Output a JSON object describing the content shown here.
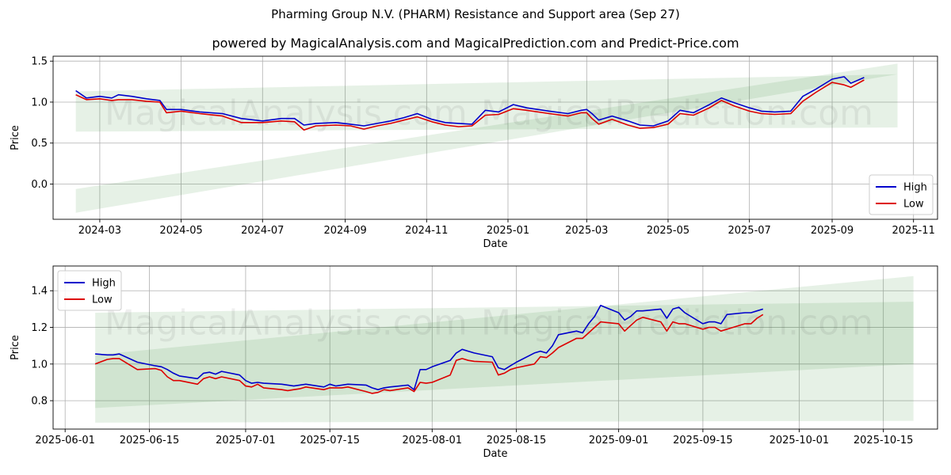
{
  "title": "Pharming Group N.V. (PHARM) Resistance and Support area (Sep 27)",
  "subtitle": "powered by MagicalAnalysis.com and MagicalPrediction.com and Predict-Price.com",
  "watermark": [
    "MagicalAnalysis.com",
    "MagicalPrediction.com"
  ],
  "colors": {
    "high": "#0000cc",
    "low": "#dd0000",
    "band": "#2e8b2e",
    "grid": "#b0b0b0"
  },
  "chart_data": [
    {
      "type": "line",
      "xlabel": "Date",
      "ylabel": "Price",
      "x_ticks": [
        "2024-03",
        "2024-05",
        "2024-07",
        "2024-09",
        "2024-11",
        "2025-01",
        "2025-03",
        "2025-05",
        "2025-07",
        "2025-09",
        "2025-11"
      ],
      "y_ticks": [
        "0.0",
        "0.5",
        "1.0",
        "1.5"
      ],
      "xlim": [
        "2024-01-26",
        "2025-11-19"
      ],
      "ylim": [
        -0.43,
        1.56
      ],
      "legend": {
        "position": "bottom-right",
        "entries": [
          "High",
          "Low"
        ]
      },
      "bands": [
        {
          "x": [
            "2024-02-12",
            "2025-10-20"
          ],
          "lower": [
            -0.35,
            1.34
          ],
          "upper": [
            -0.06,
            1.47
          ],
          "alpha": 0.12
        },
        {
          "x": [
            "2024-02-12",
            "2025-10-20"
          ],
          "lower": [
            0.64,
            0.69
          ],
          "upper": [
            1.13,
            1.34
          ],
          "alpha": 0.12
        }
      ],
      "series": [
        {
          "name": "High",
          "x": [
            "2024-02-12",
            "2024-02-20",
            "2024-03-01",
            "2024-03-10",
            "2024-03-15",
            "2024-03-25",
            "2024-04-05",
            "2024-04-15",
            "2024-04-20",
            "2024-05-01",
            "2024-05-15",
            "2024-06-01",
            "2024-06-15",
            "2024-07-01",
            "2024-07-15",
            "2024-07-25",
            "2024-08-01",
            "2024-08-10",
            "2024-08-25",
            "2024-09-05",
            "2024-09-15",
            "2024-09-25",
            "2024-10-05",
            "2024-10-15",
            "2024-10-25",
            "2024-11-05",
            "2024-11-15",
            "2024-11-25",
            "2024-12-05",
            "2024-12-15",
            "2024-12-25",
            "2025-01-05",
            "2025-01-15",
            "2025-02-01",
            "2025-02-15",
            "2025-02-25",
            "2025-03-01",
            "2025-03-05",
            "2025-03-10",
            "2025-03-20",
            "2025-04-01",
            "2025-04-10",
            "2025-04-20",
            "2025-05-01",
            "2025-05-10",
            "2025-05-20",
            "2025-06-01",
            "2025-06-10",
            "2025-06-20",
            "2025-07-01",
            "2025-07-10",
            "2025-07-20",
            "2025-08-01",
            "2025-08-10",
            "2025-08-20",
            "2025-09-01",
            "2025-09-10",
            "2025-09-15",
            "2025-09-25"
          ],
          "values": [
            1.14,
            1.05,
            1.07,
            1.05,
            1.09,
            1.07,
            1.04,
            1.02,
            0.91,
            0.91,
            0.88,
            0.86,
            0.8,
            0.77,
            0.8,
            0.8,
            0.72,
            0.74,
            0.75,
            0.73,
            0.71,
            0.74,
            0.77,
            0.81,
            0.86,
            0.79,
            0.75,
            0.74,
            0.73,
            0.9,
            0.88,
            0.97,
            0.93,
            0.89,
            0.86,
            0.9,
            0.91,
            0.86,
            0.78,
            0.83,
            0.77,
            0.72,
            0.71,
            0.77,
            0.9,
            0.87,
            0.97,
            1.05,
            0.99,
            0.93,
            0.89,
            0.88,
            0.89,
            1.07,
            1.16,
            1.28,
            1.31,
            1.23,
            1.3
          ]
        },
        {
          "name": "Low",
          "x": [
            "2024-02-12",
            "2024-02-20",
            "2024-03-01",
            "2024-03-10",
            "2024-03-15",
            "2024-03-25",
            "2024-04-05",
            "2024-04-15",
            "2024-04-20",
            "2024-05-01",
            "2024-05-15",
            "2024-06-01",
            "2024-06-15",
            "2024-07-01",
            "2024-07-15",
            "2024-07-25",
            "2024-08-01",
            "2024-08-10",
            "2024-08-25",
            "2024-09-05",
            "2024-09-15",
            "2024-09-25",
            "2024-10-05",
            "2024-10-15",
            "2024-10-25",
            "2024-11-05",
            "2024-11-15",
            "2024-11-25",
            "2024-12-05",
            "2024-12-15",
            "2024-12-25",
            "2025-01-05",
            "2025-01-15",
            "2025-02-01",
            "2025-02-15",
            "2025-02-25",
            "2025-03-01",
            "2025-03-05",
            "2025-03-10",
            "2025-03-20",
            "2025-04-01",
            "2025-04-10",
            "2025-04-20",
            "2025-05-01",
            "2025-05-10",
            "2025-05-20",
            "2025-06-01",
            "2025-06-10",
            "2025-06-20",
            "2025-07-01",
            "2025-07-10",
            "2025-07-20",
            "2025-08-01",
            "2025-08-10",
            "2025-08-20",
            "2025-09-01",
            "2025-09-10",
            "2025-09-15",
            "2025-09-25"
          ],
          "values": [
            1.09,
            1.03,
            1.04,
            1.02,
            1.03,
            1.03,
            1.01,
            1.0,
            0.87,
            0.89,
            0.86,
            0.83,
            0.75,
            0.75,
            0.77,
            0.76,
            0.66,
            0.71,
            0.72,
            0.71,
            0.67,
            0.71,
            0.74,
            0.78,
            0.82,
            0.76,
            0.72,
            0.7,
            0.71,
            0.84,
            0.85,
            0.92,
            0.9,
            0.86,
            0.83,
            0.87,
            0.87,
            0.8,
            0.73,
            0.79,
            0.72,
            0.68,
            0.69,
            0.73,
            0.86,
            0.84,
            0.93,
            1.02,
            0.95,
            0.89,
            0.86,
            0.85,
            0.86,
            1.01,
            1.12,
            1.24,
            1.21,
            1.18,
            1.27
          ]
        }
      ]
    },
    {
      "type": "line",
      "xlabel": "Date",
      "ylabel": "Price",
      "x_ticks": [
        "2025-06-01",
        "2025-06-15",
        "2025-07-01",
        "2025-07-15",
        "2025-08-01",
        "2025-08-15",
        "2025-09-01",
        "2025-09-15",
        "2025-10-01",
        "2025-10-15"
      ],
      "y_ticks": [
        "0.8",
        "1.0",
        "1.2",
        "1.4"
      ],
      "xlim": [
        "2025-05-30",
        "2025-10-24"
      ],
      "ylim": [
        0.645,
        1.535
      ],
      "legend": {
        "position": "top-left",
        "entries": [
          "High",
          "Low"
        ]
      },
      "bands": [
        {
          "x": [
            "2025-06-06",
            "2025-10-20"
          ],
          "lower": [
            0.76,
            1.0
          ],
          "upper": [
            1.05,
            1.48
          ],
          "alpha": 0.12
        },
        {
          "x": [
            "2025-06-06",
            "2025-10-20"
          ],
          "lower": [
            0.68,
            0.69
          ],
          "upper": [
            1.28,
            1.34
          ],
          "alpha": 0.12
        }
      ],
      "series": [
        {
          "name": "High",
          "x": [
            "2025-06-06",
            "2025-06-08",
            "2025-06-09",
            "2025-06-10",
            "2025-06-13",
            "2025-06-16",
            "2025-06-17",
            "2025-06-18",
            "2025-06-19",
            "2025-06-20",
            "2025-06-23",
            "2025-06-24",
            "2025-06-25",
            "2025-06-26",
            "2025-06-27",
            "2025-06-30",
            "2025-07-01",
            "2025-07-02",
            "2025-07-03",
            "2025-07-04",
            "2025-07-07",
            "2025-07-08",
            "2025-07-09",
            "2025-07-10",
            "2025-07-11",
            "2025-07-14",
            "2025-07-15",
            "2025-07-16",
            "2025-07-17",
            "2025-07-18",
            "2025-07-21",
            "2025-07-22",
            "2025-07-23",
            "2025-07-24",
            "2025-07-25",
            "2025-07-28",
            "2025-07-29",
            "2025-07-30",
            "2025-07-31",
            "2025-08-01",
            "2025-08-04",
            "2025-08-05",
            "2025-08-06",
            "2025-08-07",
            "2025-08-08",
            "2025-08-11",
            "2025-08-12",
            "2025-08-13",
            "2025-08-14",
            "2025-08-15",
            "2025-08-18",
            "2025-08-19",
            "2025-08-20",
            "2025-08-21",
            "2025-08-22",
            "2025-08-25",
            "2025-08-26",
            "2025-08-27",
            "2025-08-28",
            "2025-08-29",
            "2025-09-01",
            "2025-09-02",
            "2025-09-03",
            "2025-09-04",
            "2025-09-05",
            "2025-09-08",
            "2025-09-09",
            "2025-09-10",
            "2025-09-11",
            "2025-09-12",
            "2025-09-15",
            "2025-09-16",
            "2025-09-17",
            "2025-09-18",
            "2025-09-19",
            "2025-09-22",
            "2025-09-23",
            "2025-09-24",
            "2025-09-25"
          ],
          "values": [
            1.055,
            1.05,
            1.05,
            1.055,
            1.01,
            0.99,
            0.985,
            0.97,
            0.95,
            0.935,
            0.92,
            0.95,
            0.955,
            0.945,
            0.96,
            0.94,
            0.91,
            0.895,
            0.9,
            0.895,
            0.89,
            0.885,
            0.88,
            0.885,
            0.89,
            0.875,
            0.89,
            0.88,
            0.885,
            0.89,
            0.885,
            0.87,
            0.86,
            0.87,
            0.875,
            0.885,
            0.86,
            0.97,
            0.97,
            0.985,
            1.02,
            1.06,
            1.08,
            1.07,
            1.06,
            1.04,
            0.98,
            0.97,
            0.99,
            1.01,
            1.06,
            1.07,
            1.06,
            1.1,
            1.16,
            1.18,
            1.17,
            1.22,
            1.26,
            1.32,
            1.28,
            1.24,
            1.26,
            1.29,
            1.29,
            1.3,
            1.25,
            1.3,
            1.31,
            1.28,
            1.22,
            1.23,
            1.23,
            1.22,
            1.27,
            1.28,
            1.28,
            1.29,
            1.3
          ]
        },
        {
          "name": "Low",
          "x": [
            "2025-06-06",
            "2025-06-08",
            "2025-06-09",
            "2025-06-10",
            "2025-06-13",
            "2025-06-16",
            "2025-06-17",
            "2025-06-18",
            "2025-06-19",
            "2025-06-20",
            "2025-06-23",
            "2025-06-24",
            "2025-06-25",
            "2025-06-26",
            "2025-06-27",
            "2025-06-30",
            "2025-07-01",
            "2025-07-02",
            "2025-07-03",
            "2025-07-04",
            "2025-07-07",
            "2025-07-08",
            "2025-07-09",
            "2025-07-10",
            "2025-07-11",
            "2025-07-14",
            "2025-07-15",
            "2025-07-16",
            "2025-07-17",
            "2025-07-18",
            "2025-07-21",
            "2025-07-22",
            "2025-07-23",
            "2025-07-24",
            "2025-07-25",
            "2025-07-28",
            "2025-07-29",
            "2025-07-30",
            "2025-07-31",
            "2025-08-01",
            "2025-08-04",
            "2025-08-05",
            "2025-08-06",
            "2025-08-07",
            "2025-08-08",
            "2025-08-11",
            "2025-08-12",
            "2025-08-13",
            "2025-08-14",
            "2025-08-15",
            "2025-08-18",
            "2025-08-19",
            "2025-08-20",
            "2025-08-21",
            "2025-08-22",
            "2025-08-25",
            "2025-08-26",
            "2025-08-27",
            "2025-08-28",
            "2025-08-29",
            "2025-09-01",
            "2025-09-02",
            "2025-09-03",
            "2025-09-04",
            "2025-09-05",
            "2025-09-08",
            "2025-09-09",
            "2025-09-10",
            "2025-09-11",
            "2025-09-12",
            "2025-09-15",
            "2025-09-16",
            "2025-09-17",
            "2025-09-18",
            "2025-09-19",
            "2025-09-22",
            "2025-09-23",
            "2025-09-24",
            "2025-09-25"
          ],
          "values": [
            1.0,
            1.025,
            1.03,
            1.03,
            0.97,
            0.975,
            0.965,
            0.93,
            0.91,
            0.91,
            0.89,
            0.92,
            0.93,
            0.92,
            0.93,
            0.91,
            0.88,
            0.875,
            0.89,
            0.87,
            0.86,
            0.855,
            0.86,
            0.865,
            0.875,
            0.86,
            0.87,
            0.87,
            0.87,
            0.875,
            0.85,
            0.84,
            0.845,
            0.86,
            0.855,
            0.87,
            0.85,
            0.9,
            0.895,
            0.9,
            0.94,
            1.02,
            1.03,
            1.02,
            1.015,
            1.01,
            0.94,
            0.95,
            0.97,
            0.98,
            1.0,
            1.04,
            1.035,
            1.06,
            1.09,
            1.14,
            1.14,
            1.17,
            1.2,
            1.23,
            1.22,
            1.18,
            1.21,
            1.24,
            1.255,
            1.23,
            1.18,
            1.23,
            1.22,
            1.22,
            1.19,
            1.2,
            1.2,
            1.18,
            1.19,
            1.22,
            1.22,
            1.25,
            1.27
          ]
        }
      ]
    }
  ]
}
